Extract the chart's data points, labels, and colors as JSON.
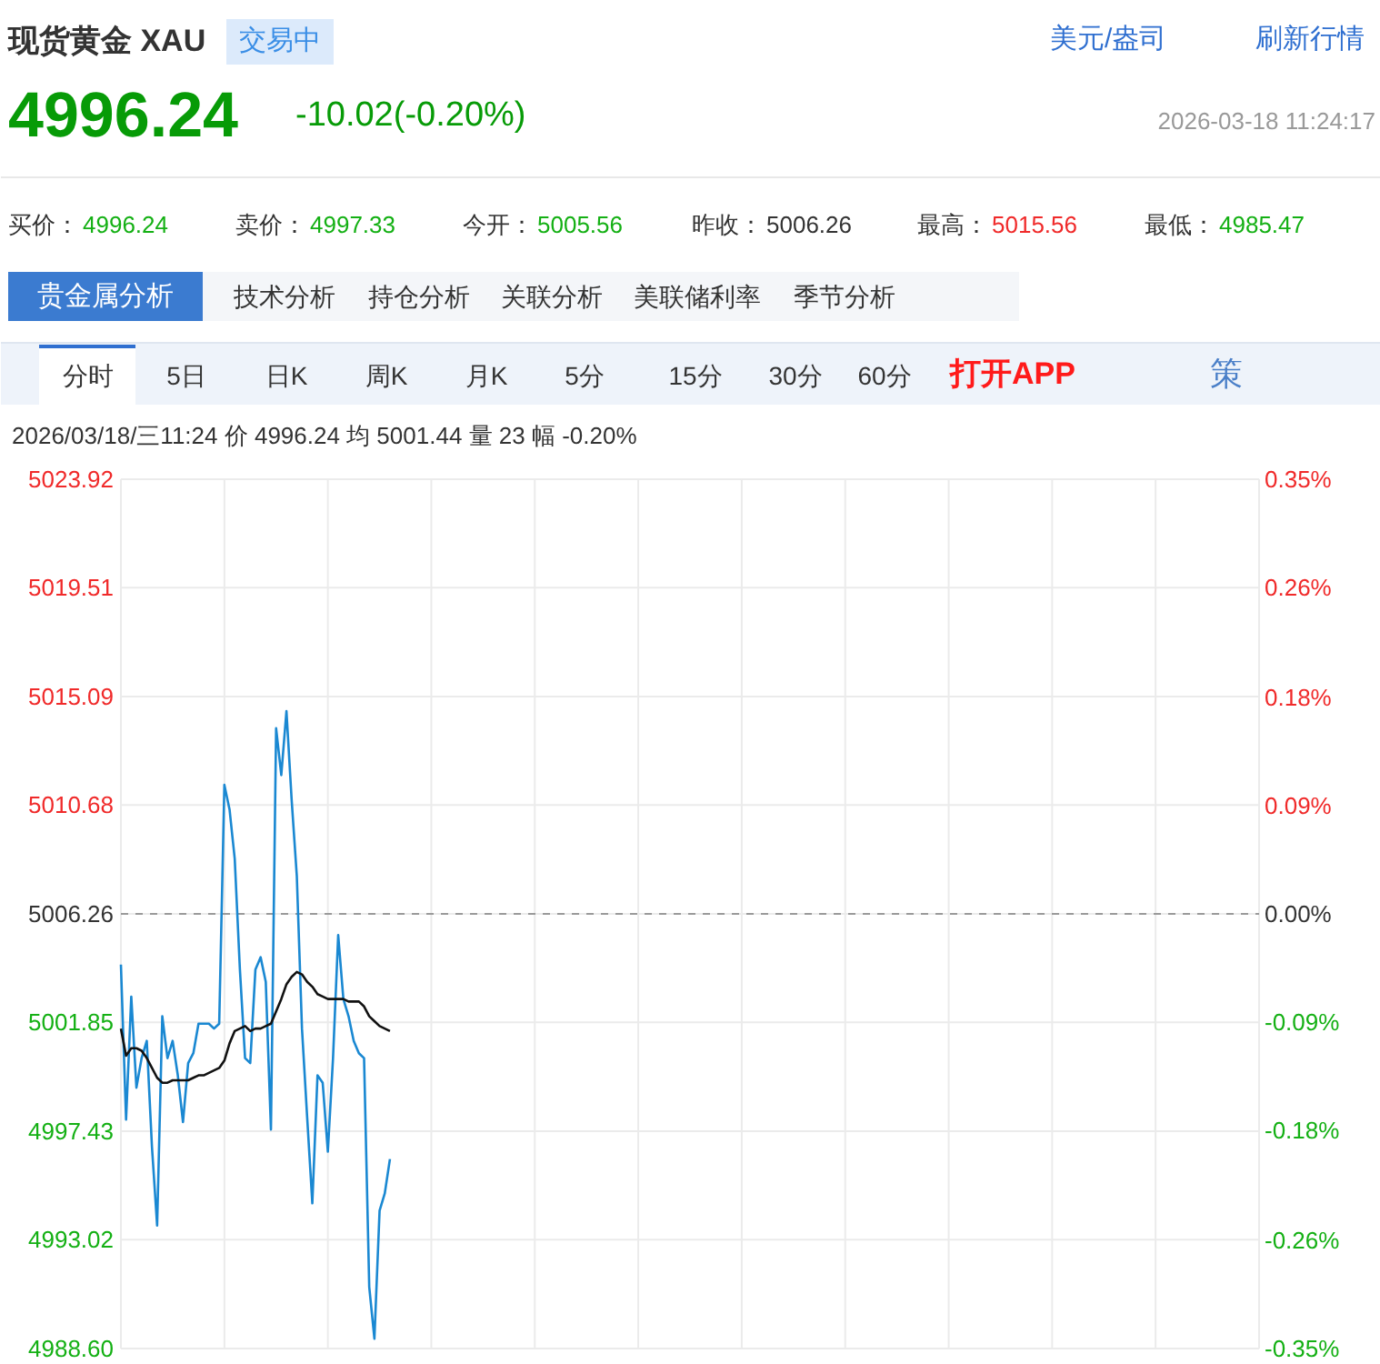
{
  "chart_data": {
    "type": "line",
    "title": "现货黄金 XAU",
    "annotations": [
      "交易中",
      "美元/盎司",
      "刷新行情",
      "4996.24",
      "-10.02(-0.20%)",
      "2026-03-18 11:24:17",
      "买价：",
      "4996.24",
      "卖价：",
      "4997.33",
      "今开：",
      "5005.56",
      "昨收：",
      "5006.26",
      "最高：",
      "5015.56",
      "最低：",
      "4985.47",
      "贵金属分析",
      "技术分析",
      "持仓分析",
      "关联分析",
      "美联储利率",
      "季节分析",
      "分时",
      "5日",
      "日K",
      "周K",
      "月K",
      "5分",
      "15分",
      "30分",
      "60分",
      "打开APP",
      "策",
      "2026/03/18/三11:24 价 4996.24 均 5001.44 量 23 幅 -0.20%"
    ],
    "categories": [
      null,
      null,
      null,
      null,
      null,
      null,
      null,
      null,
      null,
      null,
      null,
      null,
      null,
      null,
      null,
      null,
      null,
      null,
      null,
      null,
      null,
      null,
      null,
      null,
      null,
      null,
      null,
      null,
      null,
      null,
      null,
      null,
      null,
      null,
      null,
      null,
      null,
      null,
      null,
      null,
      null,
      null,
      null,
      null,
      null,
      null,
      null,
      null,
      null,
      null,
      null,
      null,
      null,
      null,
      null,
      null,
      null,
      null,
      null,
      null,
      null,
      null,
      null,
      null,
      null,
      null,
      null,
      null,
      null,
      null,
      null,
      null,
      null,
      null,
      null,
      null,
      null,
      null,
      null,
      null,
      null,
      null,
      null,
      null,
      null,
      null,
      null,
      null,
      null,
      null,
      null,
      null,
      null,
      null,
      null,
      null,
      null,
      null,
      null,
      null,
      null,
      null,
      null,
      null,
      null,
      null,
      null,
      null,
      null,
      null,
      null,
      null,
      null,
      null,
      null,
      null,
      null,
      null,
      null,
      null,
      null,
      null,
      null,
      null,
      null,
      null,
      null,
      null,
      null,
      null,
      null,
      null,
      null,
      null,
      null,
      null,
      null,
      null,
      null,
      null,
      null,
      null,
      null,
      null,
      null,
      null,
      null,
      null,
      null,
      null,
      null,
      null,
      null,
      null,
      null,
      null,
      null,
      null,
      null,
      null,
      null,
      null,
      null,
      null,
      null,
      null,
      null,
      null,
      null,
      null,
      null,
      null,
      null,
      null,
      null,
      null,
      null,
      null,
      null,
      null,
      null,
      null,
      null,
      null,
      null,
      null,
      null,
      null,
      null,
      null,
      null,
      null,
      null,
      null,
      null,
      null,
      null,
      null,
      null,
      null,
      null,
      null,
      null,
      null,
      null,
      null,
      null,
      null,
      null,
      null,
      null,
      null,
      null,
      null,
      null,
      null,
      null,
      null,
      null,
      null,
      null
    ],
    "series": [
      {
        "color": "#1a88d2",
        "values": [
          5004.2,
          4997.9,
          5002.9,
          4999.2,
          5000.4,
          5001.1,
          4996.8,
          4993.6,
          5002.1,
          5000.4,
          5001.1,
          4999.7,
          4997.8,
          5000.2,
          5000.6,
          5001.8,
          5001.8,
          5001.8,
          5001.6,
          5001.8,
          5011.5,
          5010.5,
          5008.5,
          5004.0,
          5000.4,
          5000.2,
          5004.0,
          5004.5,
          5003.5,
          4997.5,
          5013.8,
          5011.9,
          5014.5,
          5010.9,
          5007.8,
          5001.6,
          4998.0,
          4994.5,
          4999.7,
          4999.4,
          4996.6,
          5000.4,
          5005.4,
          5002.8,
          5002.1,
          5001.1,
          5000.6,
          5000.4,
          4991.1,
          4989.0,
          4994.2,
          4994.9,
          4996.3,
          null,
          null,
          null,
          null,
          null,
          null,
          null,
          null,
          null,
          null,
          null,
          null,
          null,
          null,
          null,
          null,
          null,
          null,
          null,
          null,
          null,
          null,
          null,
          null,
          null,
          null,
          null,
          null,
          null,
          null,
          null,
          null,
          null,
          null,
          null,
          null,
          null,
          null,
          null,
          null,
          null,
          null,
          null,
          null,
          null,
          null,
          null,
          null,
          null,
          null,
          null,
          null,
          null,
          null,
          null,
          null,
          null,
          null,
          null,
          null,
          null,
          null,
          null,
          null,
          null,
          null,
          null,
          null,
          null,
          null,
          null,
          null,
          null,
          null,
          null,
          null,
          null,
          null,
          null,
          null,
          null,
          null,
          null,
          null,
          null,
          null,
          null,
          null,
          null,
          null,
          null,
          null,
          null,
          null,
          null,
          null,
          null,
          null,
          null,
          null,
          null,
          null,
          null,
          null,
          null,
          null,
          null,
          null,
          null,
          null,
          null,
          null,
          null,
          null,
          null,
          null,
          null,
          null,
          null,
          null,
          null,
          null,
          null,
          null,
          null,
          null,
          null,
          null,
          null,
          null,
          null,
          null,
          null,
          null,
          null,
          null,
          null,
          null,
          null,
          null,
          null,
          null,
          null,
          null,
          null,
          null,
          null,
          null,
          null,
          null,
          null,
          null,
          null,
          null,
          null,
          null,
          null,
          null,
          null,
          null,
          null,
          null,
          null,
          null,
          null,
          null,
          null,
          null
        ]
      },
      {
        "color": "#111111",
        "values": [
          5001.6,
          5000.5,
          5000.8,
          5000.8,
          5000.7,
          5000.4,
          5000.0,
          4999.6,
          4999.4,
          4999.4,
          4999.5,
          4999.5,
          4999.5,
          4999.5,
          4999.6,
          4999.7,
          4999.7,
          4999.8,
          4999.9,
          5000.0,
          5000.3,
          5001.0,
          5001.5,
          5001.6,
          5001.7,
          5001.5,
          5001.6,
          5001.6,
          5001.7,
          5001.8,
          5002.3,
          5002.8,
          5003.4,
          5003.7,
          5003.9,
          5003.8,
          5003.5,
          5003.3,
          5003.0,
          5002.9,
          5002.8,
          5002.8,
          5002.8,
          5002.8,
          5002.7,
          5002.7,
          5002.7,
          5002.5,
          5002.1,
          5001.9,
          5001.7,
          5001.6,
          5001.5,
          null,
          null,
          null,
          null,
          null,
          null,
          null,
          null,
          null,
          null,
          null,
          null,
          null,
          null,
          null,
          null,
          null,
          null,
          null,
          null,
          null,
          null,
          null,
          null,
          null,
          null,
          null,
          null,
          null,
          null,
          null,
          null,
          null,
          null,
          null,
          null,
          null,
          null,
          null,
          null,
          null,
          null,
          null,
          null,
          null,
          null,
          null,
          null,
          null,
          null,
          null,
          null,
          null,
          null,
          null,
          null,
          null,
          null,
          null,
          null,
          null,
          null,
          null,
          null,
          null,
          null,
          null,
          null,
          null,
          null,
          null,
          null,
          null,
          null,
          null,
          null,
          null,
          null,
          null,
          null,
          null,
          null,
          null,
          null,
          null,
          null,
          null,
          null,
          null,
          null,
          null,
          null,
          null,
          null,
          null,
          null,
          null,
          null,
          null,
          null,
          null,
          null,
          null,
          null,
          null,
          null,
          null,
          null,
          null,
          null,
          null,
          null,
          null,
          null,
          null,
          null,
          null,
          null,
          null,
          null,
          null,
          null,
          null,
          null,
          null,
          null,
          null,
          null,
          null,
          null,
          null,
          null,
          null,
          null,
          null,
          null,
          null,
          null,
          null,
          null,
          null,
          null,
          null,
          null,
          null,
          null,
          null,
          null,
          null,
          null,
          null,
          null,
          null,
          null,
          null,
          null,
          null,
          null,
          null,
          null,
          null,
          null,
          null,
          null,
          null,
          null,
          null,
          null
        ]
      }
    ],
    "ylim": [
      4988.6,
      5023.92
    ],
    "yticks": [
      {
        "value": 4988.6,
        "label": "4988.60"
      },
      4993.02,
      4997.43,
      5001.85,
      5006.26,
      5010.68,
      5015.09,
      5019.51,
      5023.92
    ],
    "y2lim": [
      -0.353,
      0.353
    ],
    "y2ticks": [
      {
        "value": -0.353,
        "label": "-0.35%"
      },
      {
        "value": -0.265,
        "label": "-0.26%"
      },
      {
        "value": -0.176,
        "label": "-0.18%"
      },
      {
        "value": -0.088,
        "label": "-0.09%"
      },
      {
        "value": 0,
        "label": "0.00%"
      },
      {
        "value": 0.088,
        "label": "0.09%"
      },
      {
        "value": 0.176,
        "label": "0.18%"
      },
      {
        "value": 0.265,
        "label": "0.26%"
      },
      {
        "value": 0.353,
        "label": "0.35%"
      }
    ],
    "ref_lines": [
      {
        "axis": "y",
        "value": 5006.26,
        "color": "#9a9a9a",
        "line_style": "dashed"
      }
    ],
    "grid": true,
    "tick_labels": "y"
  }
}
